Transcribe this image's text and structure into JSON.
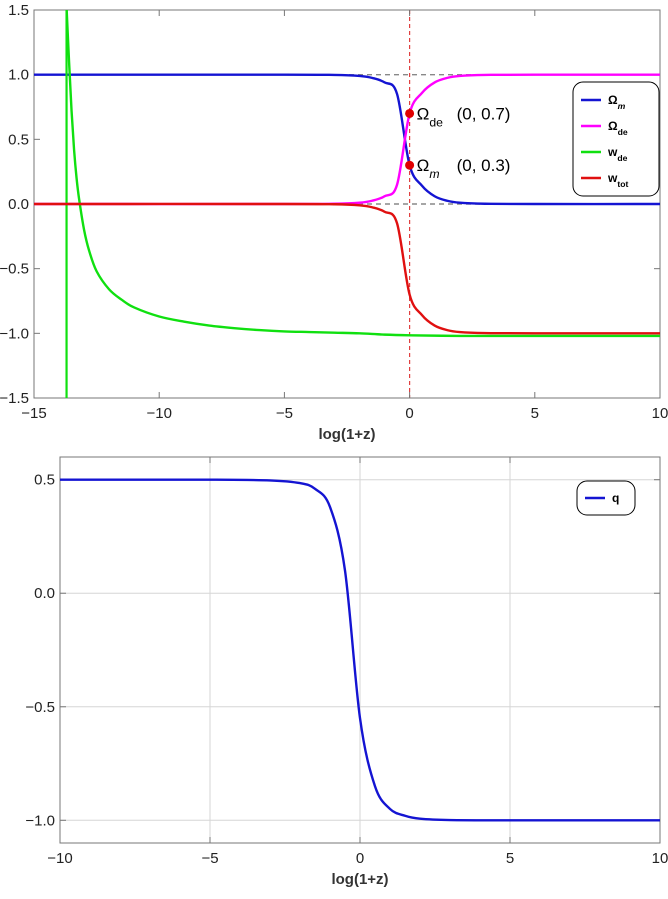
{
  "chart_data": [
    {
      "type": "line",
      "xlabel": "log(1+z)",
      "xlim": [
        -15,
        10
      ],
      "ylim": [
        -1.5,
        1.5
      ],
      "xticks": [
        -15,
        -10,
        -5,
        0,
        5,
        10
      ],
      "xtick_labels": [
        "−15",
        "−10",
        "−5",
        "0",
        "5",
        "10"
      ],
      "yticks": [
        -1.5,
        -1.0,
        -0.5,
        0.0,
        0.5,
        1.0,
        1.5
      ],
      "ytick_labels": [
        "−1.5",
        "−1.0",
        "−0.5",
        "0.0",
        "0.5",
        "1.0",
        "1.5"
      ],
      "grid": false,
      "legend_position": "right",
      "reference_lines": {
        "horizontal": [
          1.0,
          0.0
        ],
        "vertical": [
          0
        ],
        "colors": {
          "horizontal": "#888888",
          "vertical": "#e04040"
        }
      },
      "series": [
        {
          "name": "Ω",
          "sub": "m",
          "sub_italic": true,
          "color": "#1414d2",
          "x": [
            -15,
            -5,
            -3,
            -2,
            -1.5,
            -1,
            -0.5,
            0,
            0.5,
            1,
            1.5,
            2,
            3,
            5,
            10
          ],
          "y": [
            1.0,
            1.0,
            0.998,
            0.99,
            0.975,
            0.94,
            0.85,
            0.3,
            0.14,
            0.06,
            0.025,
            0.01,
            0.002,
            0.0,
            0.0
          ]
        },
        {
          "name": "Ω",
          "sub": "de",
          "sub_italic": false,
          "color": "#ff00ff",
          "x": [
            -15,
            -5,
            -3,
            -2,
            -1.5,
            -1,
            -0.5,
            0,
            0.5,
            1,
            1.5,
            2,
            3,
            5,
            10
          ],
          "y": [
            0.0,
            0.0,
            0.002,
            0.01,
            0.025,
            0.06,
            0.15,
            0.7,
            0.86,
            0.94,
            0.975,
            0.99,
            0.998,
            1.0,
            1.0
          ]
        },
        {
          "name": "w",
          "sub": "de",
          "sub_italic": false,
          "color": "#10e010",
          "x": [
            -13.7,
            -13.6,
            -13.5,
            -13.4,
            -13.3,
            -13.2,
            -13.0,
            -12.8,
            -12.5,
            -12.0,
            -11.5,
            -11.0,
            -10.0,
            -9.0,
            -8.0,
            -7.0,
            -6.0,
            -5.0,
            -4.0,
            -3.0,
            -2.0,
            -1.0,
            0.0,
            2.0,
            4.0,
            6.0,
            8.0,
            10.0
          ],
          "y": [
            1.52,
            1.1,
            0.72,
            0.42,
            0.2,
            0.04,
            -0.2,
            -0.36,
            -0.52,
            -0.66,
            -0.74,
            -0.8,
            -0.87,
            -0.91,
            -0.94,
            -0.96,
            -0.975,
            -0.985,
            -0.99,
            -0.995,
            -1.0,
            -1.01,
            -1.015,
            -1.02,
            -1.02,
            -1.02,
            -1.02,
            -1.02
          ],
          "asymptote_x": -13.7
        },
        {
          "name": "w",
          "sub": "tot",
          "sub_italic": false,
          "color": "#e01010",
          "x": [
            -15,
            -5,
            -3,
            -2,
            -1.5,
            -1,
            -0.5,
            0,
            0.5,
            1,
            1.5,
            2,
            3,
            5,
            10
          ],
          "y": [
            0.0,
            0.0,
            -0.002,
            -0.01,
            -0.025,
            -0.06,
            -0.15,
            -0.7,
            -0.86,
            -0.94,
            -0.975,
            -0.99,
            -0.998,
            -1.0,
            -1.0
          ]
        }
      ],
      "points": [
        {
          "x": 0,
          "y": 0.7,
          "label": "Ω",
          "label_sub": "de",
          "sub_italic": false,
          "label_color": "#ff00ff",
          "coords": "(0,  0.7)"
        },
        {
          "x": 0,
          "y": 0.3,
          "label": "Ω",
          "label_sub": "m",
          "sub_italic": true,
          "label_color": "#1414d2",
          "coords": "(0,  0.3)"
        }
      ],
      "point_color": "#e00000"
    },
    {
      "type": "line",
      "xlabel": "log(1+z)",
      "xlim": [
        -10,
        10
      ],
      "ylim": [
        -1.1,
        0.6
      ],
      "xticks": [
        -10,
        -5,
        0,
        5,
        10
      ],
      "xtick_labels": [
        "−10",
        "−5",
        "0",
        "5",
        "10"
      ],
      "yticks": [
        -1.0,
        -0.5,
        0.0,
        0.5
      ],
      "ytick_labels": [
        "−1.0",
        "−0.5",
        "0.0",
        "0.5"
      ],
      "grid": true,
      "legend_position": "top-right",
      "series": [
        {
          "name": "q",
          "sub": "",
          "sub_italic": false,
          "color": "#1414d2",
          "x": [
            -10,
            -5,
            -3,
            -2,
            -1.5,
            -1,
            -0.5,
            0,
            0.5,
            1,
            1.5,
            2,
            3,
            5,
            10
          ],
          "y": [
            0.5,
            0.5,
            0.497,
            0.485,
            0.46,
            0.38,
            0.1,
            -0.55,
            -0.85,
            -0.95,
            -0.98,
            -0.993,
            -0.999,
            -1.0,
            -1.0
          ]
        }
      ]
    }
  ]
}
